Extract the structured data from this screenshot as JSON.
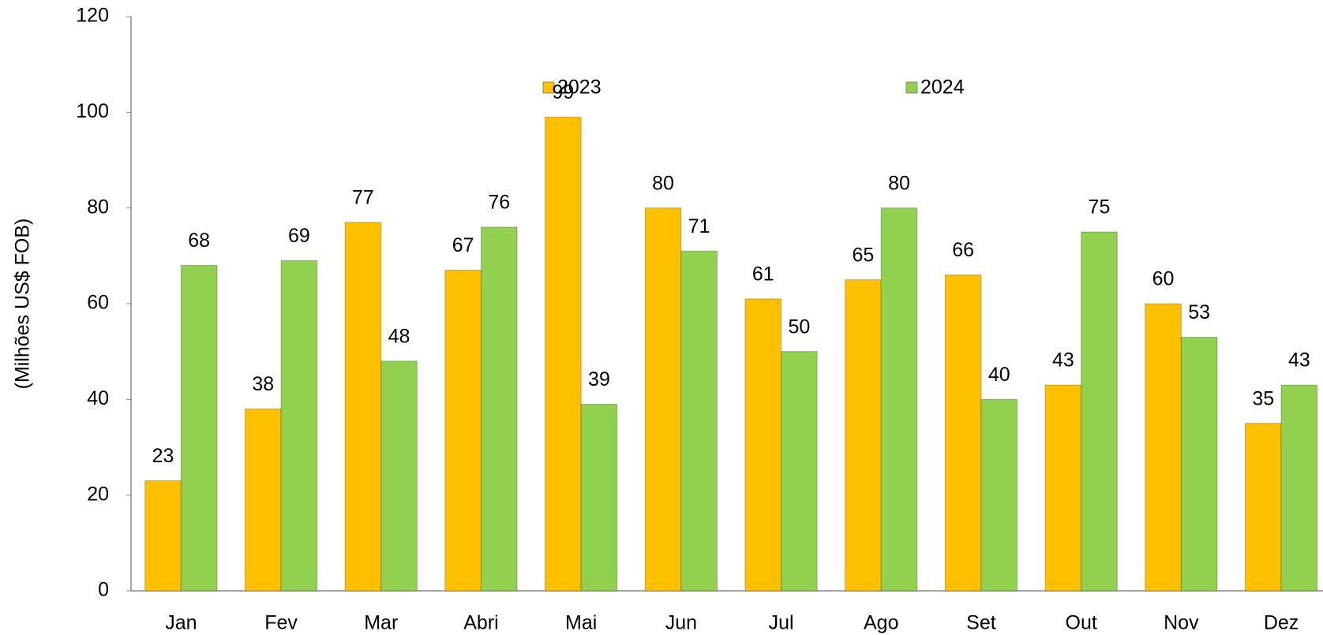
{
  "chart_data": {
    "type": "bar",
    "y_label": "(Milhões US$ FOB)",
    "categories": [
      "Jan",
      "Fev",
      "Mar",
      "Abri",
      "Mai",
      "Jun",
      "Jul",
      "Ago",
      "Set",
      "Out",
      "Nov",
      "Dez"
    ],
    "series": [
      {
        "name": "2023",
        "color": "#ffc000",
        "values": [
          23,
          38,
          77,
          67,
          99,
          80,
          61,
          65,
          66,
          43,
          60,
          35
        ]
      },
      {
        "name": "2024",
        "color": "#92d050",
        "values": [
          68,
          69,
          48,
          76,
          39,
          71,
          50,
          80,
          40,
          75,
          53,
          43
        ]
      }
    ],
    "ylim": [
      0,
      120
    ],
    "yticks": [
      0,
      20,
      40,
      60,
      80,
      100,
      120
    ],
    "grid": false
  }
}
